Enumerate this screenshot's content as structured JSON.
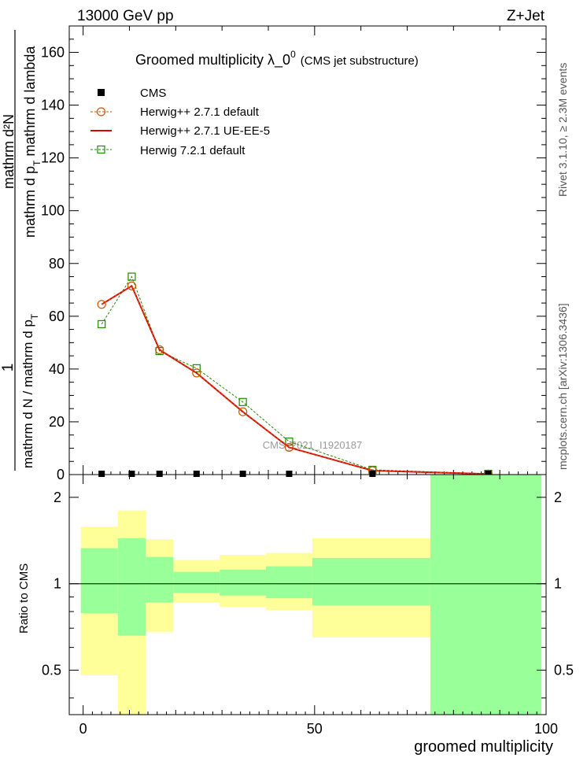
{
  "header": {
    "left": "13000 GeV pp",
    "right": "Z+Jet"
  },
  "title": {
    "main": "Groomed multiplicity  λ_0",
    "sup": "0",
    "sub": "(CMS jet substructure)"
  },
  "right_labels": {
    "rivet": "Rivet 3.1.10, ≥ 2.3M events",
    "mcplots": "mcplots.cern.ch [arXiv:1306.3436]"
  },
  "watermark": "CMS_2021_I1920187",
  "y_label": {
    "numerator_one": "1",
    "num_text": "mathrm d²N",
    "den_text": "mathrm d p",
    "den_sub": "T",
    "den_text2": " mathrm d lambda",
    "left_frac": "mathrm d N / mathrm d p",
    "left_sub": "T"
  },
  "ratio_label": "Ratio to CMS",
  "x_label": "groomed multiplicity",
  "colors": {
    "data": "#000000",
    "herwig_pp_default": "#cc5500",
    "herwig_pp_ueee5": "#dd0000",
    "herwig7": "#228800",
    "band_inner": "#99ff99",
    "band_outer": "#ffff99"
  },
  "chart_data": {
    "type": "line",
    "main": {
      "xlim": [
        -3,
        100
      ],
      "ylim": [
        0,
        170
      ],
      "yticks": [
        0,
        20,
        40,
        60,
        80,
        100,
        120,
        140,
        160
      ],
      "series": [
        {
          "name": "CMS",
          "style": "marker-square",
          "x": [
            4,
            10.5,
            16.5,
            24.5,
            34.5,
            44.5,
            62.5,
            87.5
          ],
          "values": [
            0.3,
            0.3,
            0.3,
            0.3,
            0.3,
            0.3,
            0.3,
            0.3
          ]
        },
        {
          "name": "Herwig++ 2.7.1 default",
          "style": "dashed-circle",
          "x": [
            4,
            10.5,
            16.5,
            24.5,
            34.5,
            44.5,
            62.5,
            87.5
          ],
          "values": [
            64.5,
            71.5,
            47.3,
            38.5,
            23.8,
            10.3,
            1.5,
            0.2
          ]
        },
        {
          "name": "Herwig++ 2.7.1 UE-EE-5",
          "style": "solid",
          "x": [
            4,
            10.5,
            16.5,
            24.5,
            34.5,
            44.5,
            62.5,
            87.5
          ],
          "values": [
            64.5,
            71.5,
            47.3,
            38.5,
            23.8,
            10.3,
            1.5,
            0.2
          ]
        },
        {
          "name": "Herwig 7.2.1 default",
          "style": "dashed-square",
          "x": [
            4,
            10.5,
            16.5,
            24.5,
            34.5,
            44.5,
            62.5,
            87.5
          ],
          "values": [
            57,
            75,
            46.8,
            40.3,
            27.5,
            12.5,
            1.8,
            0.3
          ]
        }
      ]
    },
    "ratio": {
      "ylim": [
        0.35,
        2.4
      ],
      "log": true,
      "yticks": [
        0.5,
        1,
        2
      ],
      "reference": 1,
      "bins": [
        {
          "x0": -0.5,
          "x1": 7.5,
          "inner": [
            0.79,
            1.33
          ],
          "outer": [
            0.48,
            1.58
          ]
        },
        {
          "x0": 7.5,
          "x1": 13.5,
          "inner": [
            0.66,
            1.44
          ],
          "outer": [
            0.3,
            1.8
          ]
        },
        {
          "x0": 13.5,
          "x1": 19.5,
          "inner": [
            0.86,
            1.24
          ],
          "outer": [
            0.68,
            1.43
          ]
        },
        {
          "x0": 19.5,
          "x1": 29.5,
          "inner": [
            0.93,
            1.1
          ],
          "outer": [
            0.86,
            1.21
          ]
        },
        {
          "x0": 29.5,
          "x1": 39.5,
          "inner": [
            0.91,
            1.12
          ],
          "outer": [
            0.83,
            1.26
          ]
        },
        {
          "x0": 39.5,
          "x1": 49.5,
          "inner": [
            0.89,
            1.15
          ],
          "outer": [
            0.81,
            1.28
          ]
        },
        {
          "x0": 49.5,
          "x1": 75,
          "inner": [
            0.84,
            1.23
          ],
          "outer": [
            0.65,
            1.44
          ]
        },
        {
          "x0": 75,
          "x1": 99,
          "inner": [
            0.3,
            2.6
          ],
          "outer": [
            0.3,
            2.6
          ]
        }
      ]
    },
    "xticks": [
      0,
      50,
      100
    ]
  }
}
